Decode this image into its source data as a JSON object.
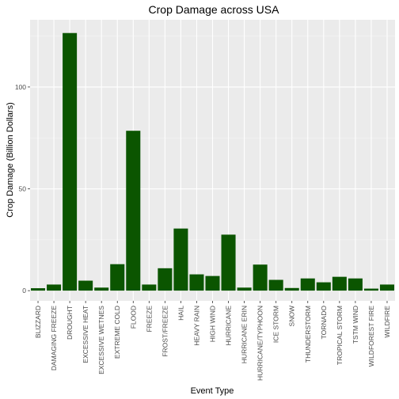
{
  "chart_data": {
    "type": "bar",
    "title": "Crop Damage across USA",
    "xlabel": "Event Type",
    "ylabel": "Crop Damage (Billion Dollars)",
    "ylim": [
      -5,
      133
    ],
    "yticks": [
      0,
      50,
      100
    ],
    "grid": true,
    "bar_color": "#0b5500",
    "panel_color": "#ebebeb",
    "categories": [
      "BLIZZARD",
      "DAMAGING FREEZE",
      "DROUGHT",
      "EXCESSIVE HEAT",
      "EXCESSIVE WETNES",
      "EXTREME COLD",
      "FLOOD",
      "FREEZE",
      "FROST/FREEZE",
      "HAIL",
      "HEAVY RAIN",
      "HIGH WIND",
      "HURRICANE",
      "HURRICANE ERIN",
      "HURRICANE/TYPHOON",
      "ICE STORM",
      "SNOW",
      "THUNDERSTORM",
      "TORNADO",
      "TROPICAL STORM",
      "TSTM WIND",
      "WILDFOREST FIRE",
      "WILDFIRE"
    ],
    "values": [
      1.2,
      3.0,
      126.5,
      4.9,
      1.5,
      13.0,
      78.5,
      3.0,
      11.0,
      30.5,
      8.0,
      7.2,
      27.5,
      1.5,
      12.8,
      5.3,
      1.3,
      6.0,
      4.1,
      6.8,
      6.0,
      1.0,
      3.0
    ]
  }
}
